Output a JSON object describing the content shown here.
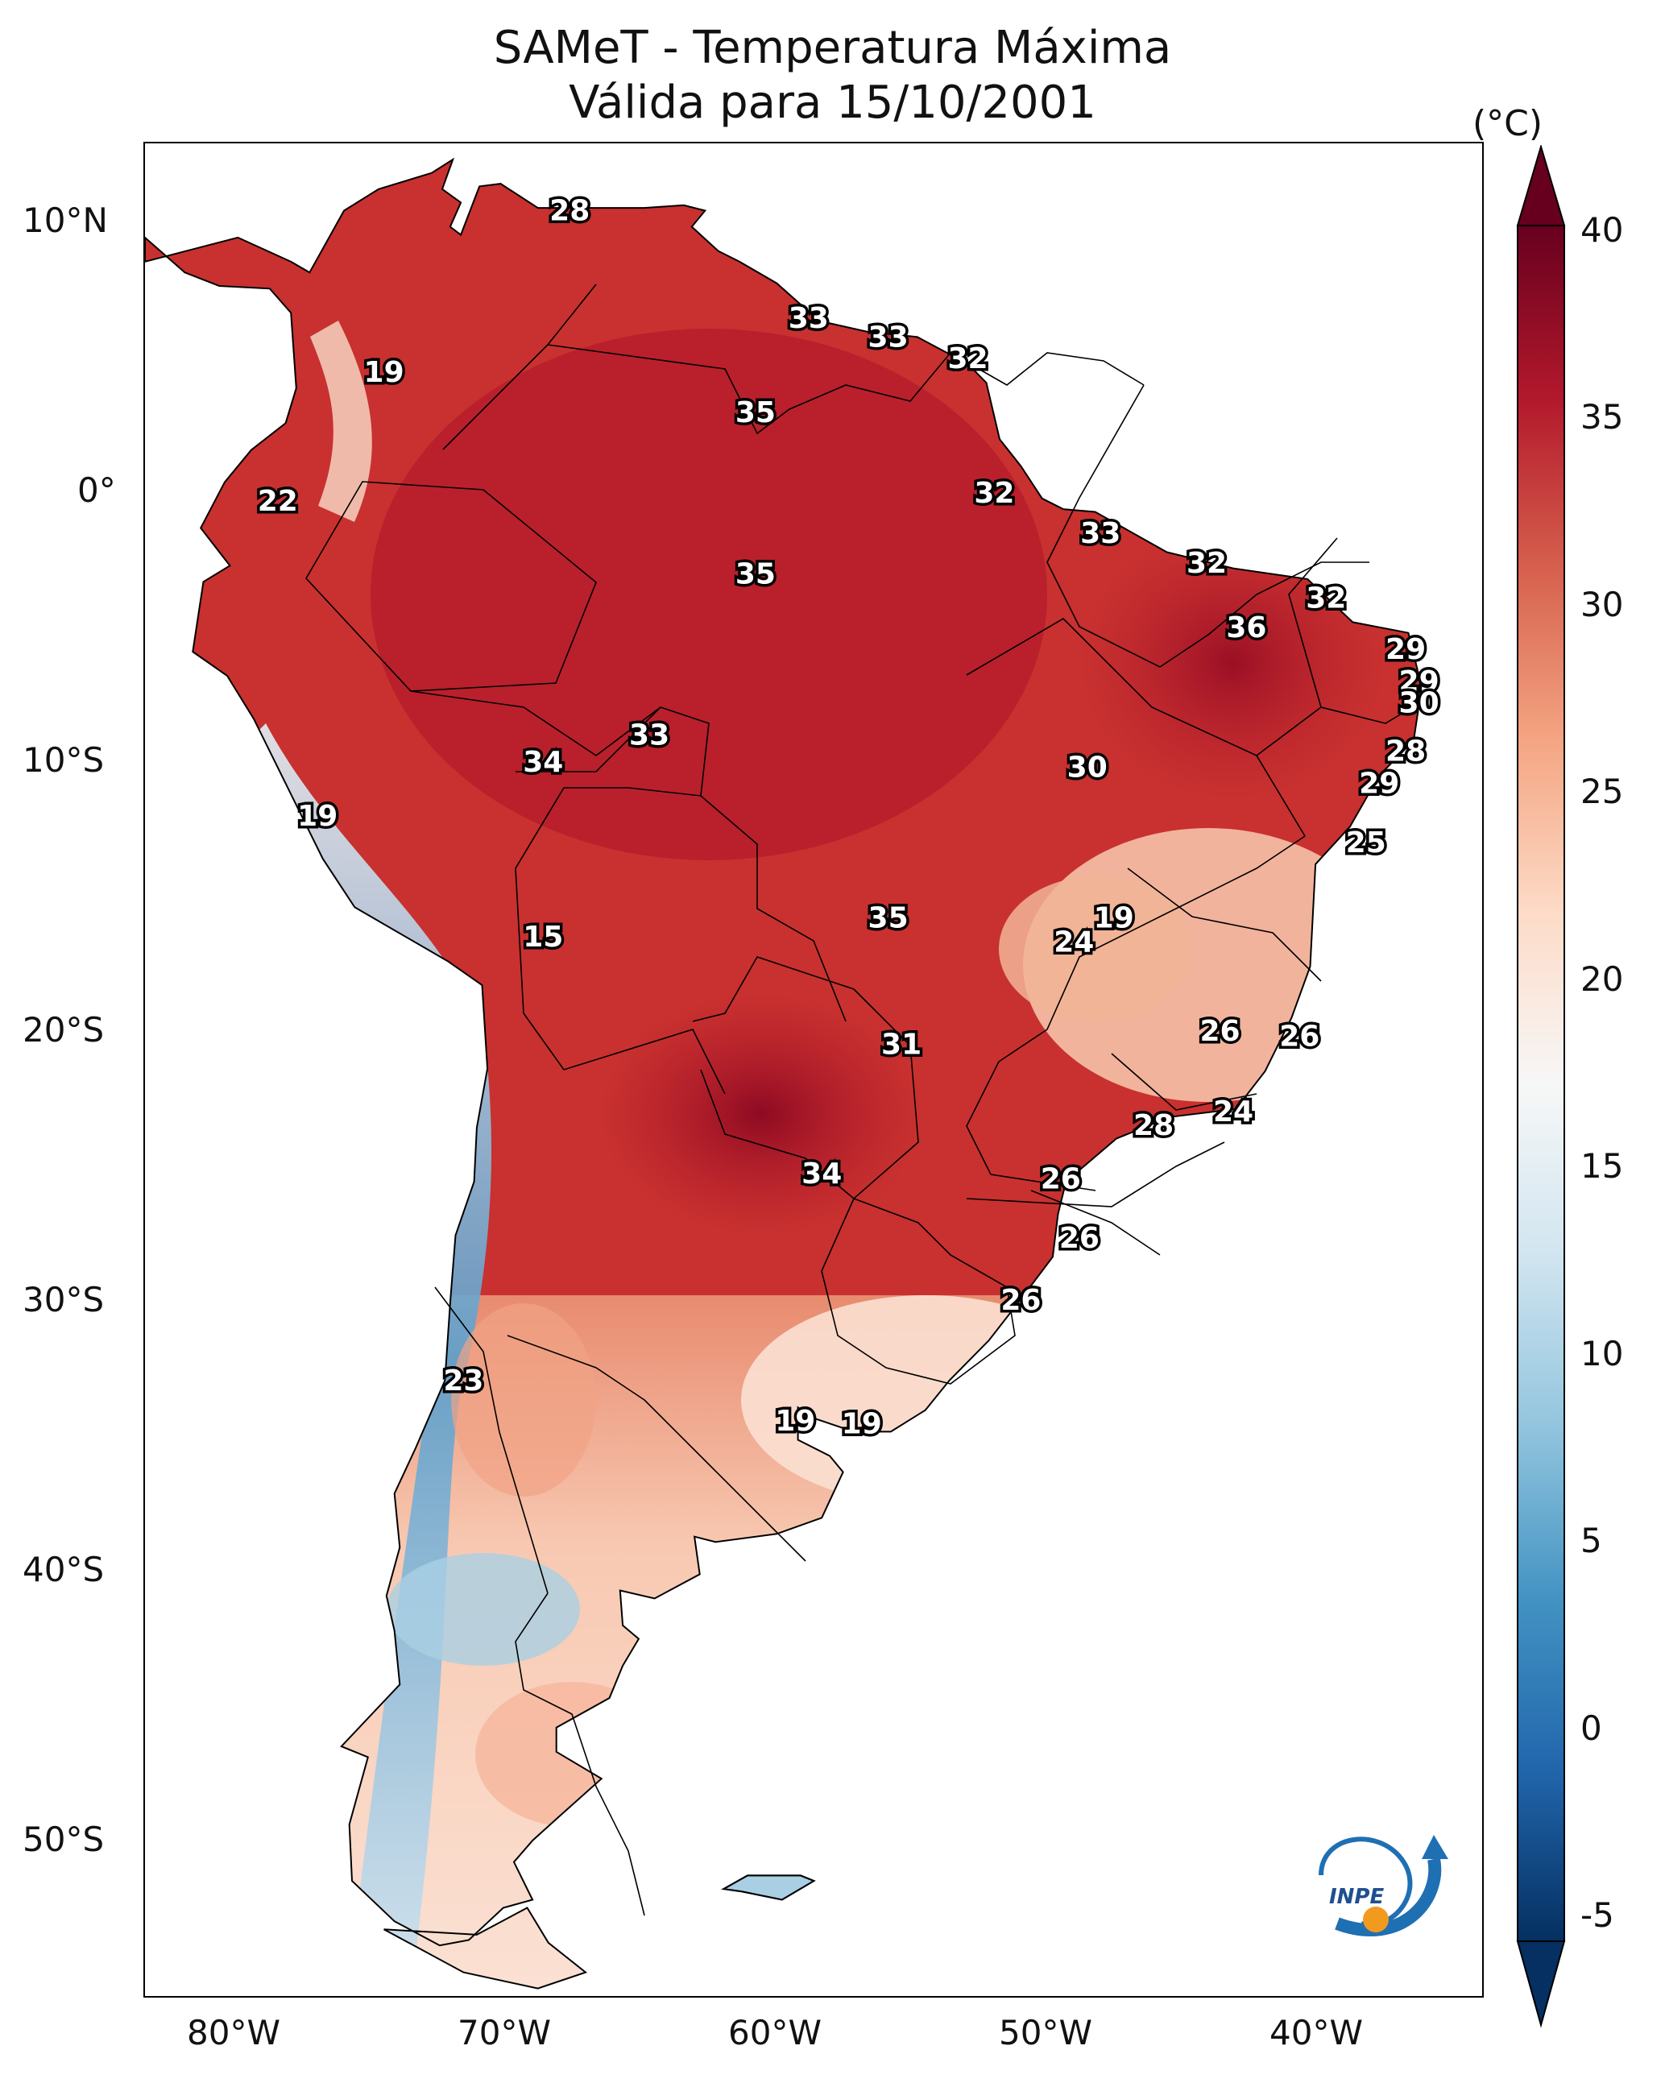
{
  "title": {
    "line1": "SAMeT - Temperatura Máxima",
    "line2": "Válida para 15/10/2001"
  },
  "axes": {
    "lat_labels": [
      "10°N",
      "0°",
      "10°S",
      "20°S",
      "30°S",
      "40°S",
      "50°S"
    ],
    "lon_labels": [
      "80°W",
      "70°W",
      "60°W",
      "50°W",
      "40°W"
    ]
  },
  "colorbar": {
    "unit": "(°C)",
    "ticks": [
      "40",
      "35",
      "30",
      "25",
      "20",
      "15",
      "10",
      "5",
      "0",
      "-5"
    ],
    "colors": [
      "#67001f",
      "#b2182b",
      "#d6604d",
      "#f4a582",
      "#fddbc7",
      "#f7f7f7",
      "#d1e5f0",
      "#92c5de",
      "#4393c3",
      "#2166ac",
      "#053061"
    ]
  },
  "contour_labels": [
    {
      "text": "28",
      "lon": -67,
      "lat": 10.5
    },
    {
      "text": "19",
      "lon": -74,
      "lat": 4.5
    },
    {
      "text": "33",
      "lon": -58,
      "lat": 6.5
    },
    {
      "text": "33",
      "lon": -55,
      "lat": 5.8
    },
    {
      "text": "32",
      "lon": -52,
      "lat": 5
    },
    {
      "text": "35",
      "lon": -60,
      "lat": 3
    },
    {
      "text": "22",
      "lon": -78,
      "lat": -0.3
    },
    {
      "text": "32",
      "lon": -51,
      "lat": 0
    },
    {
      "text": "33",
      "lon": -47,
      "lat": -1.5
    },
    {
      "text": "32",
      "lon": -43,
      "lat": -2.6
    },
    {
      "text": "35",
      "lon": -60,
      "lat": -3
    },
    {
      "text": "32",
      "lon": -38.5,
      "lat": -3.9
    },
    {
      "text": "36",
      "lon": -41.5,
      "lat": -5
    },
    {
      "text": "29",
      "lon": -35.5,
      "lat": -5.8
    },
    {
      "text": "29",
      "lon": -35,
      "lat": -7
    },
    {
      "text": "30",
      "lon": -35,
      "lat": -7.8
    },
    {
      "text": "33",
      "lon": -64,
      "lat": -9
    },
    {
      "text": "34",
      "lon": -68,
      "lat": -10
    },
    {
      "text": "30",
      "lon": -47.5,
      "lat": -10.2
    },
    {
      "text": "28",
      "lon": -35.5,
      "lat": -9.6
    },
    {
      "text": "29",
      "lon": -36.5,
      "lat": -10.8
    },
    {
      "text": "19",
      "lon": -76.5,
      "lat": -12
    },
    {
      "text": "25",
      "lon": -37,
      "lat": -13
    },
    {
      "text": "15",
      "lon": -68,
      "lat": -16.5
    },
    {
      "text": "35",
      "lon": -55,
      "lat": -15.8
    },
    {
      "text": "19",
      "lon": -46.5,
      "lat": -15.8
    },
    {
      "text": "24",
      "lon": -48,
      "lat": -16.7
    },
    {
      "text": "26",
      "lon": -42.5,
      "lat": -20
    },
    {
      "text": "26",
      "lon": -39.5,
      "lat": -20.2
    },
    {
      "text": "31",
      "lon": -54.5,
      "lat": -20.5
    },
    {
      "text": "24",
      "lon": -42,
      "lat": -23
    },
    {
      "text": "28",
      "lon": -45,
      "lat": -23.5
    },
    {
      "text": "34",
      "lon": -57.5,
      "lat": -25.3
    },
    {
      "text": "26",
      "lon": -48.5,
      "lat": -25.5
    },
    {
      "text": "26",
      "lon": -47.8,
      "lat": -27.7
    },
    {
      "text": "26",
      "lon": -50,
      "lat": -30
    },
    {
      "text": "23",
      "lon": -71,
      "lat": -33
    },
    {
      "text": "19",
      "lon": -58.5,
      "lat": -34.5
    },
    {
      "text": "19",
      "lon": -56,
      "lat": -34.6
    }
  ],
  "logo": {
    "text": "INPE"
  }
}
